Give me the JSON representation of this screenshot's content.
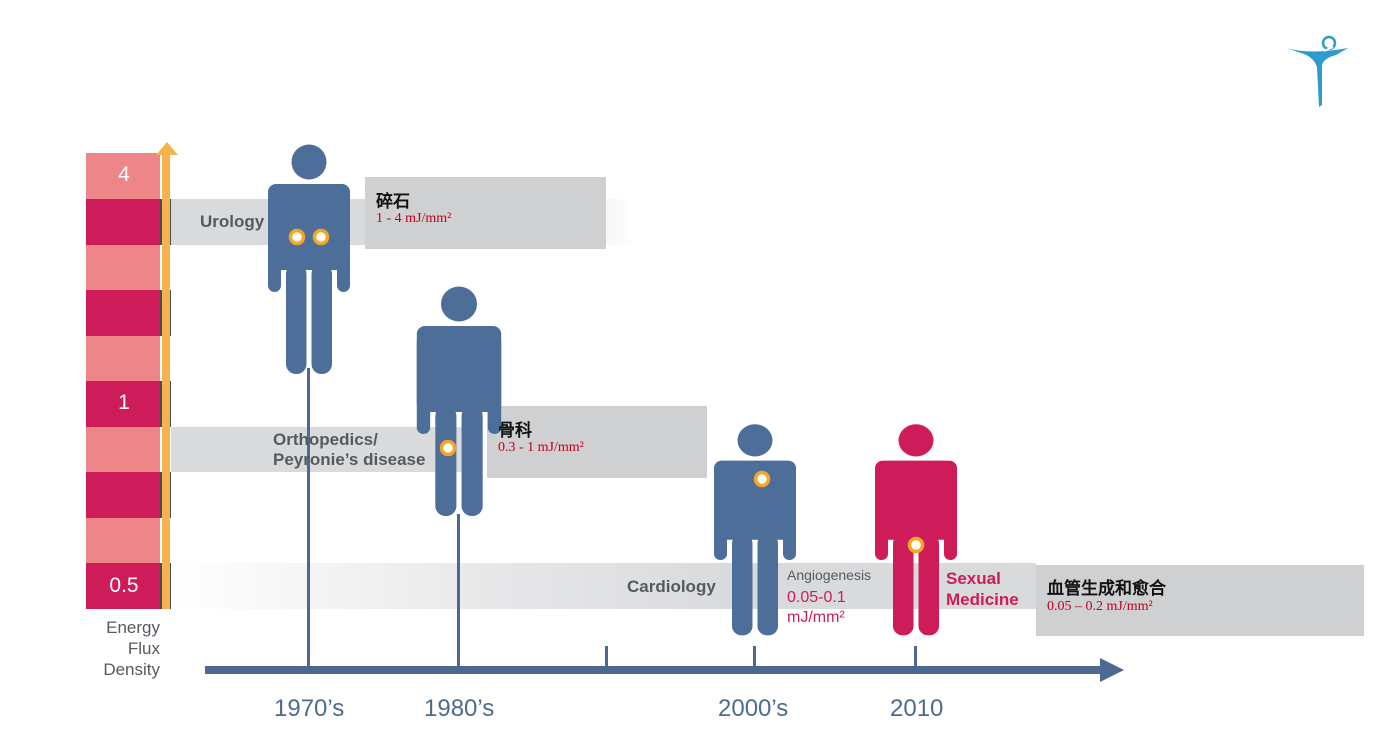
{
  "colors": {
    "figure_blue": "#4e6e9a",
    "figure_magenta": "#cd1c59",
    "scale_dark": "#cd1c59",
    "scale_light": "#ee8589",
    "rail_orange": "#f6b24c",
    "band_gray": "#d9dadc",
    "box_gray": "#cfd0d2",
    "timeline_blue": "#4d6891",
    "dose_red": "#c0001c"
  },
  "scale": {
    "label_top": "4",
    "label_mid": "1",
    "label_bottom": "0.5",
    "axis_title_line1": "Energy",
    "axis_title_line2": "Flux",
    "axis_title_line3": "Density"
  },
  "bands": {
    "urology": "Urology",
    "orthopedics_line1": "Orthopedics/",
    "orthopedics_line2": "Peyronie’s disease",
    "cardiology": "Cardiology"
  },
  "boxes": {
    "urology_title": "碎石",
    "urology_dose": "1 - 4 mJ/mm²",
    "ortho_title": "骨科",
    "ortho_dose": "0.3 - 1 mJ/mm²",
    "angio_title": "血管生成和愈合",
    "angio_dose": "0.05 – 0.2 mJ/mm²"
  },
  "angiogenesis": {
    "label": "Angiogenesis",
    "dose_line1": "0.05-0.1",
    "dose_line2": "mJ/mm²"
  },
  "sexual_medicine": {
    "line1": "Sexual",
    "line2": "Medicine"
  },
  "timeline": {
    "years": [
      "1970’s",
      "1980’s",
      "2000’s",
      "2010"
    ]
  },
  "logo": {
    "icon": "stick-figure-logo-icon"
  }
}
